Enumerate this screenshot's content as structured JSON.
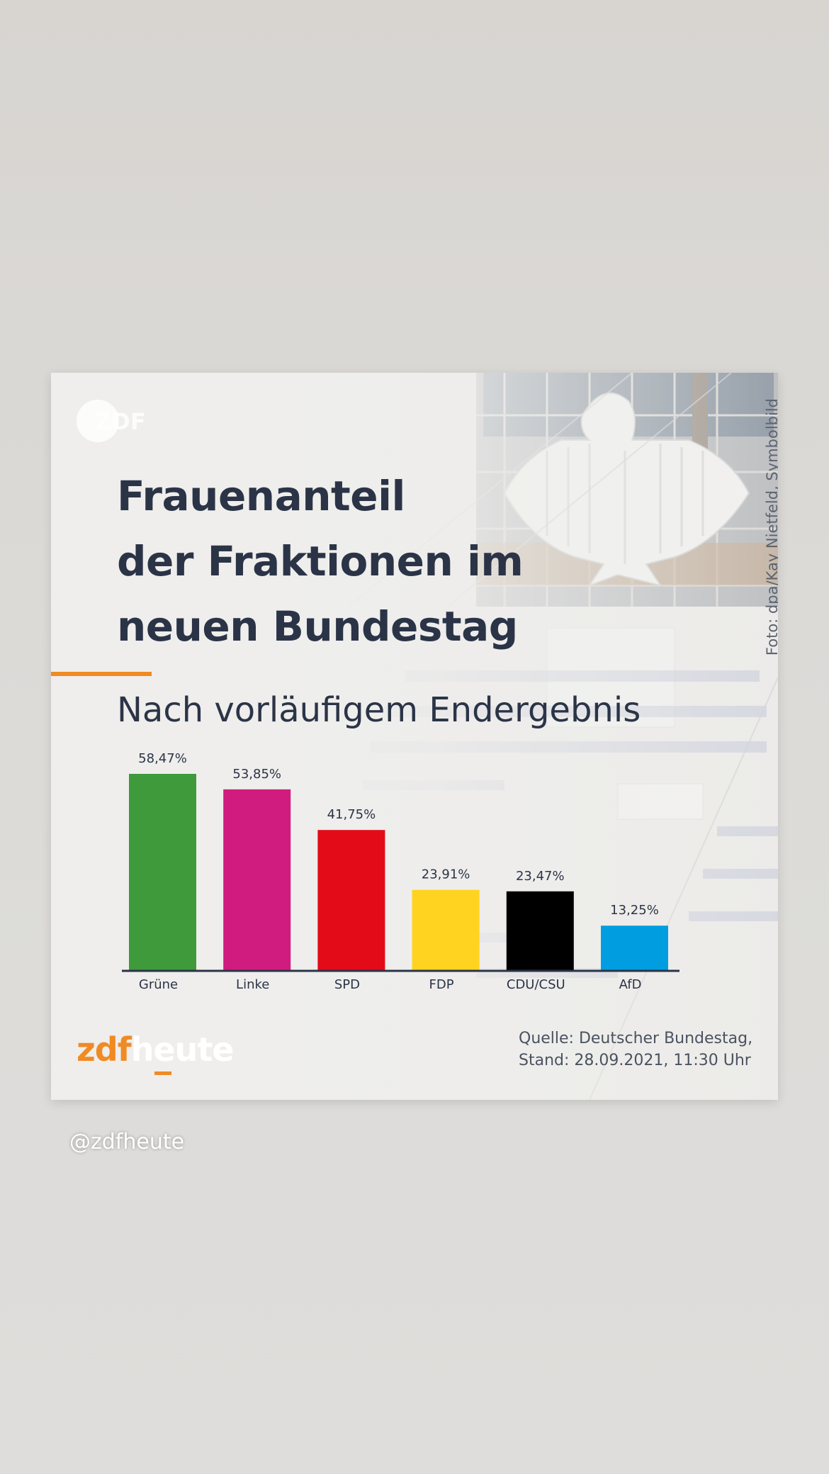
{
  "card": {
    "watermark_logo": "ZDF",
    "title_lines": [
      "Frauenanteil",
      "der Fraktionen im",
      "neuen Bundestag"
    ],
    "subtitle": "Nach vorläufigem Endergebnis",
    "photo_credit": "Foto: dpa/Kay Nietfeld, Symbolbild",
    "brand": {
      "part1": "zdf",
      "part2": "heute"
    },
    "source_lines": [
      "Quelle: Deutscher Bundestag,",
      "Stand: 28.09.2021, 11:30 Uhr"
    ]
  },
  "chart_data": {
    "type": "bar",
    "categories": [
      "Grüne",
      "Linke",
      "SPD",
      "FDP",
      "CDU/CSU",
      "AfD"
    ],
    "values": [
      58.47,
      53.85,
      41.75,
      23.91,
      23.47,
      13.25
    ],
    "value_labels": [
      "58,47%",
      "53,85%",
      "41,75%",
      "23,91%",
      "23,47%",
      "13,25%"
    ],
    "colors": [
      "#3f9a3c",
      "#d01c7e",
      "#e30b17",
      "#ffd320",
      "#000000",
      "#009ee0"
    ],
    "ylim": [
      0,
      58.47
    ],
    "grid": false,
    "axis_color": "#2b3447"
  },
  "story": {
    "handle": "@zdfheute"
  }
}
